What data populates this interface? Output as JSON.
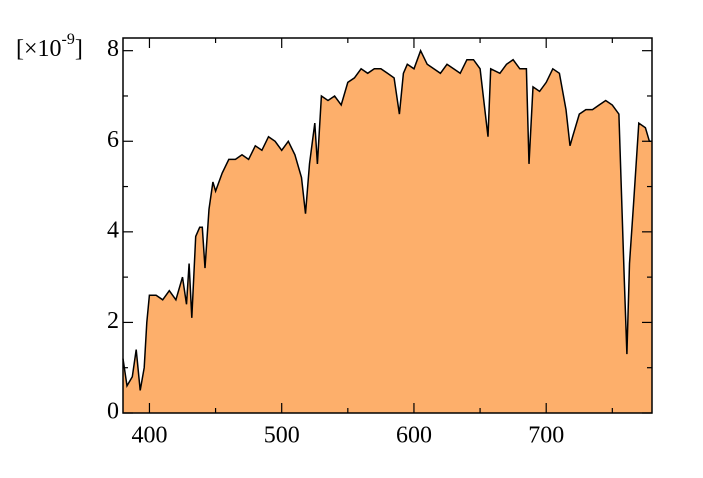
{
  "chart_data": {
    "type": "area",
    "y_scale_label": {
      "prefix": "[×10",
      "exponent": "-9",
      "suffix": "]"
    },
    "x": [
      380,
      383,
      387,
      390,
      393,
      396,
      398,
      400,
      405,
      410,
      415,
      420,
      425,
      428,
      430,
      432,
      435,
      438,
      440,
      442,
      445,
      448,
      450,
      455,
      460,
      465,
      470,
      475,
      480,
      485,
      490,
      495,
      500,
      505,
      510,
      515,
      518,
      521,
      525,
      527,
      530,
      535,
      540,
      545,
      550,
      555,
      560,
      565,
      570,
      575,
      580,
      585,
      589,
      592,
      595,
      600,
      605,
      610,
      615,
      620,
      625,
      630,
      635,
      640,
      645,
      650,
      656,
      658,
      665,
      670,
      675,
      680,
      685,
      687,
      690,
      695,
      700,
      705,
      710,
      715,
      718,
      720,
      725,
      730,
      735,
      740,
      745,
      750,
      755,
      759,
      761,
      763,
      766,
      770,
      775,
      778,
      780
    ],
    "values": [
      1.2,
      0.6,
      0.8,
      1.4,
      0.5,
      1.0,
      2.0,
      2.6,
      2.6,
      2.5,
      2.7,
      2.5,
      3.0,
      2.4,
      3.3,
      2.1,
      3.9,
      4.1,
      4.1,
      3.2,
      4.5,
      5.1,
      4.9,
      5.3,
      5.6,
      5.6,
      5.7,
      5.6,
      5.9,
      5.8,
      6.1,
      6.0,
      5.8,
      6.0,
      5.7,
      5.2,
      4.4,
      5.5,
      6.4,
      5.5,
      7.0,
      6.9,
      7.0,
      6.8,
      7.3,
      7.4,
      7.6,
      7.5,
      7.6,
      7.6,
      7.5,
      7.4,
      6.6,
      7.5,
      7.7,
      7.6,
      8.0,
      7.7,
      7.6,
      7.5,
      7.7,
      7.6,
      7.5,
      7.8,
      7.8,
      7.6,
      6.1,
      7.6,
      7.5,
      7.7,
      7.8,
      7.6,
      7.6,
      5.5,
      7.2,
      7.1,
      7.3,
      7.6,
      7.5,
      6.7,
      5.9,
      6.1,
      6.6,
      6.7,
      6.7,
      6.8,
      6.9,
      6.8,
      6.6,
      3.0,
      1.3,
      3.3,
      4.6,
      6.4,
      6.3,
      6.0,
      6.0
    ],
    "color": "#fdaf6b",
    "line_color": "#000000",
    "xlim": [
      380,
      780
    ],
    "xticks": [
      400,
      500,
      600,
      700
    ],
    "xminor": [
      450,
      550,
      650,
      750
    ],
    "ylim": [
      0,
      8.28
    ],
    "yticks": [
      0,
      2,
      4,
      6,
      8
    ],
    "yminor": [
      1,
      3,
      5,
      7
    ]
  }
}
